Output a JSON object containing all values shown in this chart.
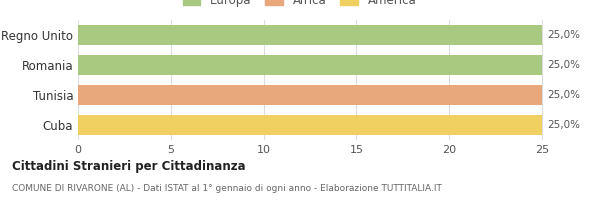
{
  "categories": [
    "Regno Unito",
    "Romania",
    "Tunisia",
    "Cuba"
  ],
  "values": [
    25,
    25,
    25,
    25
  ],
  "bar_colors": [
    "#a8c97f",
    "#a8c97f",
    "#e8a87c",
    "#f0d060"
  ],
  "continent_colors": {
    "Europa": "#a8c97f",
    "Africa": "#e8a87c",
    "America": "#f0d060"
  },
  "legend_labels": [
    "Europa",
    "Africa",
    "America"
  ],
  "xlim": [
    0,
    26.5
  ],
  "xticks": [
    0,
    5,
    10,
    15,
    20,
    25
  ],
  "title_main": "Cittadini Stranieri per Cittadinanza",
  "title_sub": "COMUNE DI RIVARONE (AL) - Dati ISTAT al 1° gennaio di ogni anno - Elaborazione TUTTITALIA.IT",
  "background_color": "#ffffff",
  "bar_height": 0.65,
  "grid_color": "#dddddd",
  "label_color": "#888888",
  "text_color": "#555555"
}
